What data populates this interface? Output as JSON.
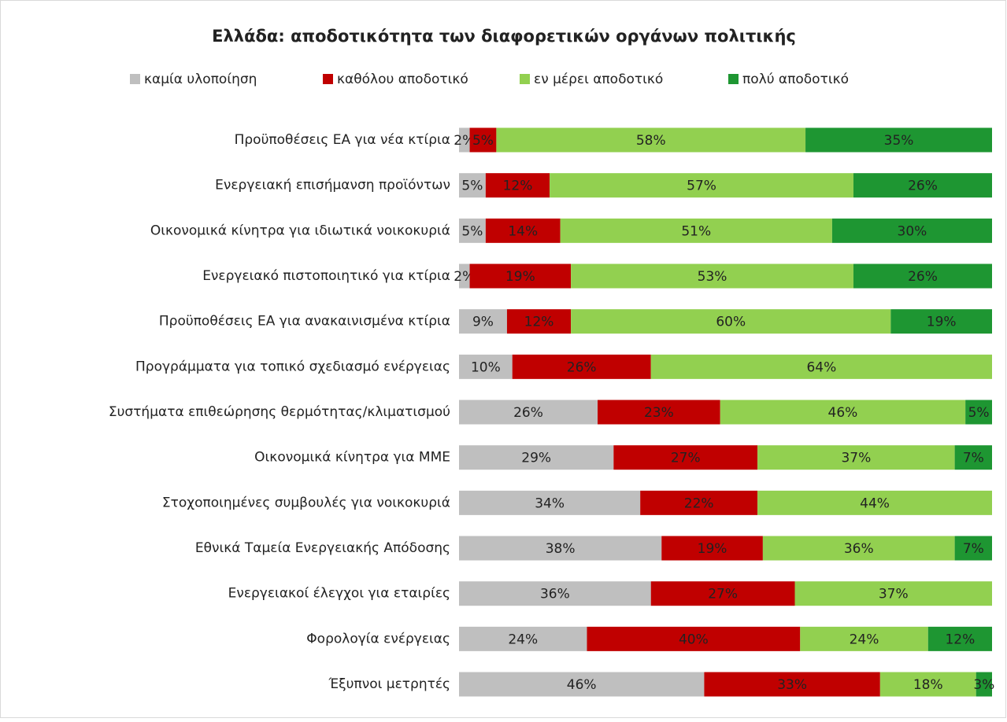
{
  "chart_data": {
    "type": "stacked_barh",
    "title": "Ελλάδα: αποδοτικότητα των διαφορετικών οργάνων πολιτικής",
    "categories": [
      "Προϋποθέσεις ΕΑ για νέα κτίρια",
      "Ενεργειακή επισήμανση προϊόντων",
      "Οικονομικά κίνητρα για ιδιωτικά νοικοκυριά",
      "Ενεργειακό πιστοποιητικό για κτίρια",
      "Προϋποθέσεις ΕΑ για ανακαινισμένα κτίρια",
      "Προγράμματα για τοπικό σχεδιασμό ενέργειας",
      "Συστήματα επιθεώρησης θερμότητας/κλιματισμού",
      "Οικονομικά κίνητρα για ΜΜΕ",
      "Στοχοποιημένες συμβουλές για νοικοκυριά",
      "Εθνικά Ταμεία Ενεργειακής Απόδοσης",
      "Ενεργειακοί έλεγχοι για εταιρίες",
      "Φορολογία ενέργειας",
      "Έξυπνοι μετρητές"
    ],
    "series": [
      {
        "name": "καμία υλοποίηση",
        "color": "#bfbfbf",
        "values": [
          2,
          5,
          5,
          2,
          9,
          10,
          26,
          29,
          34,
          38,
          36,
          24,
          46
        ],
        "value_labels": [
          "2%",
          "5%",
          "5%",
          "2%",
          "9%",
          "10%",
          "26%",
          "29%",
          "34%",
          "38%",
          "36%",
          "24%",
          "46%"
        ]
      },
      {
        "name": "καθόλου αποδοτικό",
        "color": "#c00000",
        "values": [
          5,
          12,
          14,
          19,
          12,
          26,
          23,
          27,
          22,
          19,
          27,
          40,
          33
        ],
        "value_labels": [
          "5%",
          "12%",
          "14%",
          "19%",
          "12%",
          "26%",
          "23%",
          "27%",
          "22%",
          "19%",
          "27%",
          "40%",
          "33%"
        ]
      },
      {
        "name": "εν μέρει αποδοτικό",
        "color": "#92d050",
        "values": [
          58,
          57,
          51,
          53,
          60,
          64,
          46,
          37,
          44,
          36,
          37,
          24,
          18
        ],
        "value_labels": [
          "58%",
          "57%",
          "51%",
          "53%",
          "60%",
          "64%",
          "46%",
          "37%",
          "44%",
          "36%",
          "37%",
          "24%",
          "18%"
        ]
      },
      {
        "name": "πολύ αποδοτικό",
        "color": "#1e9632",
        "values": [
          35,
          26,
          30,
          26,
          19,
          null,
          5,
          7,
          null,
          7,
          null,
          12,
          3
        ],
        "value_labels": [
          "35%",
          "26%",
          "30%",
          "26%",
          "19%",
          null,
          "5%",
          "7%",
          null,
          "7%",
          null,
          "12%",
          "3%"
        ]
      }
    ],
    "xlim": [
      0,
      100
    ]
  }
}
